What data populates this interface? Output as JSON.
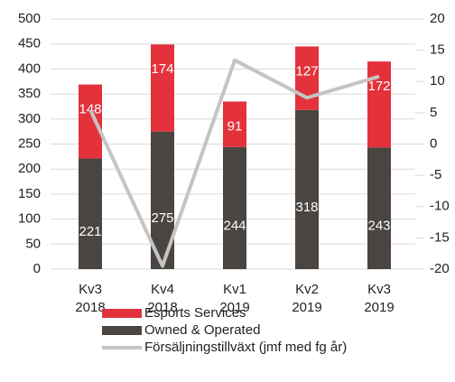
{
  "chart_data": {
    "type": "bar",
    "categories": [
      "Kv3 2018",
      "Kv4 2018",
      "Kv1 2019",
      "Kv2 2019",
      "Kv3 2019"
    ],
    "series": [
      {
        "name": "Owned & Operated",
        "color": "#4a4541",
        "values": [
          221,
          275,
          244,
          318,
          243
        ]
      },
      {
        "name": "Esports Services",
        "color": "#e3323b",
        "values": [
          148,
          174,
          91,
          127,
          172
        ]
      },
      {
        "name": "Försäljningstillväxt (jmf med fg år)",
        "color": "#c4c4c4",
        "type": "line",
        "axis": "y2",
        "values": [
          5.5,
          -19.5,
          13.4,
          7.4,
          10.8
        ]
      }
    ],
    "ylim": [
      0,
      500
    ],
    "yticks": [
      0,
      50,
      100,
      150,
      200,
      250,
      300,
      350,
      400,
      450,
      500
    ],
    "y2lim": [
      -20,
      20
    ],
    "y2ticks": [
      -20,
      -15,
      -10,
      -5,
      0,
      5,
      10,
      15,
      20
    ],
    "stacked": true,
    "grid": true,
    "legend": "bottom"
  }
}
